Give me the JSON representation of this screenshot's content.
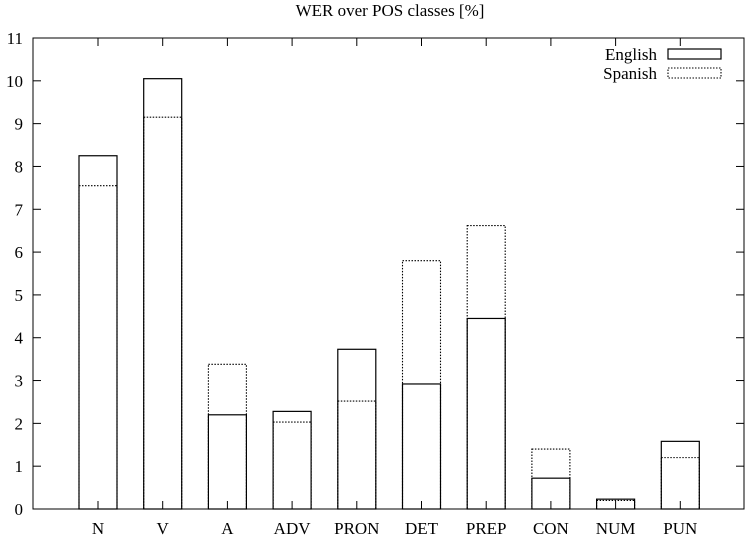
{
  "chart_data": {
    "type": "bar",
    "title": "WER over POS classes [%]",
    "xlabel": "",
    "ylabel": "",
    "categories": [
      "N",
      "V",
      "A",
      "ADV",
      "PRON",
      "DET",
      "PREP",
      "CON",
      "NUM",
      "PUN"
    ],
    "series": [
      {
        "name": "English",
        "style": "solid",
        "values": [
          8.25,
          10.05,
          2.2,
          2.28,
          3.73,
          2.92,
          4.45,
          0.72,
          0.23,
          1.58
        ]
      },
      {
        "name": "Spanish",
        "style": "dotted",
        "values": [
          7.55,
          9.15,
          3.38,
          2.03,
          2.52,
          5.8,
          6.62,
          1.4,
          0.2,
          1.2
        ]
      }
    ],
    "ylim": [
      0,
      11
    ],
    "yticks": [
      0,
      1,
      2,
      3,
      4,
      5,
      6,
      7,
      8,
      9,
      10,
      11
    ],
    "grid": false,
    "legend_position": "top-right"
  }
}
